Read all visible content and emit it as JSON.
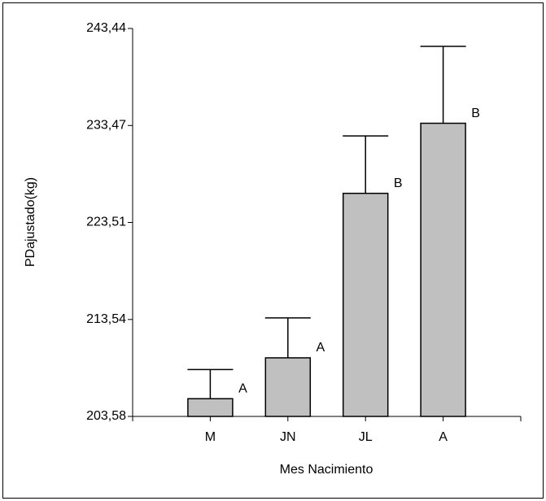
{
  "chart_data": {
    "type": "bar",
    "x_label": "Mes Nacimiento",
    "y_label": "PDajustado(kg)",
    "categories": [
      "M",
      "JN",
      "JL",
      "A"
    ],
    "values": [
      205.4,
      209.6,
      226.5,
      233.7
    ],
    "errors": [
      3.0,
      4.1,
      5.9,
      7.9
    ],
    "group_letters": [
      "A",
      "A",
      "B",
      "B"
    ],
    "color": "#c0c0c0",
    "ylim": [
      203.58,
      243.44
    ],
    "yticks": [
      {
        "value": 203.58,
        "label": "203,58"
      },
      {
        "value": 213.54,
        "label": "213,54"
      },
      {
        "value": 223.51,
        "label": "223,51"
      },
      {
        "value": 233.47,
        "label": "233,47"
      },
      {
        "value": 243.44,
        "label": "243,44"
      }
    ]
  }
}
